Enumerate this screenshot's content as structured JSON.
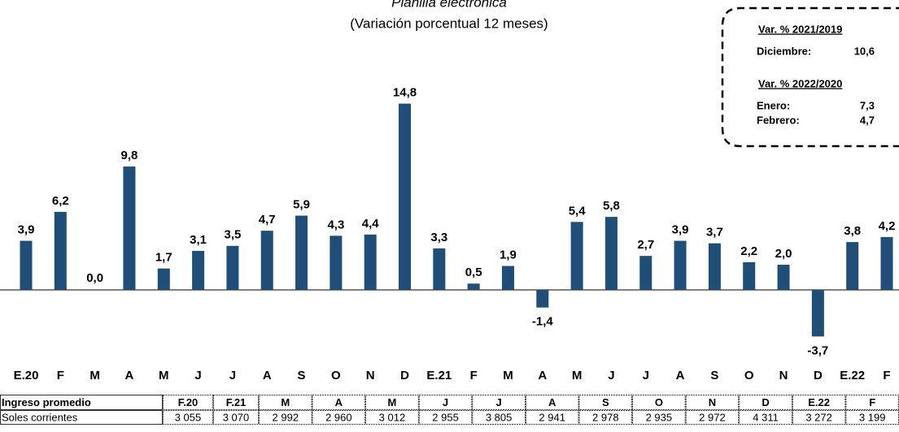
{
  "chart_data": {
    "type": "bar",
    "title": "Planilla electrónica",
    "subtitle": "(Variación porcentual 12 meses)",
    "categories": [
      "E.20",
      "F",
      "M",
      "A",
      "M",
      "J",
      "J",
      "A",
      "S",
      "O",
      "N",
      "D",
      "E.21",
      "F",
      "M",
      "A",
      "M",
      "J",
      "J",
      "A",
      "S",
      "O",
      "N",
      "D",
      "E.22",
      "F"
    ],
    "values": [
      3.9,
      6.2,
      0.0,
      9.8,
      1.7,
      3.1,
      3.5,
      4.7,
      5.9,
      4.3,
      4.4,
      14.8,
      3.3,
      0.5,
      1.9,
      -1.4,
      5.4,
      5.8,
      2.7,
      3.9,
      3.7,
      2.2,
      2.0,
      -3.7,
      3.8,
      4.2
    ],
    "value_labels": [
      "3,9",
      "6,2",
      "0,0",
      "9,8",
      "1,7",
      "3,1",
      "3,5",
      "4,7",
      "5,9",
      "4,3",
      "4,4",
      "14,8",
      "3,3",
      "0,5",
      "1,9",
      "-1,4",
      "5,4",
      "5,8",
      "2,7",
      "3,9",
      "3,7",
      "2,2",
      "2,0",
      "-3,7",
      "3,8",
      "4,2"
    ],
    "color": "#1f4e79"
  },
  "annotation_box": {
    "sections": [
      {
        "heading": "Var. % 2021/2019",
        "rows": [
          [
            "Diciembre:",
            "10,6"
          ]
        ]
      },
      {
        "heading": "Var. % 2022/2020",
        "rows": [
          [
            "Enero:",
            "7,3"
          ],
          [
            "Febrero:",
            "4,7"
          ]
        ]
      }
    ]
  },
  "table": {
    "header": [
      "Ingreso promedio",
      "F.20",
      "F.21",
      "M",
      "A",
      "M",
      "J",
      "J",
      "A",
      "S",
      "O",
      "N",
      "D",
      "E.22",
      "F"
    ],
    "rows": [
      [
        "Soles corrientes",
        "3 055",
        "3 070",
        "2 992",
        "2 960",
        "3 012",
        "2 955",
        "3 805",
        "2 941",
        "2 978",
        "2 935",
        "2 972",
        "4 311",
        "3 272",
        "3 199"
      ]
    ]
  }
}
